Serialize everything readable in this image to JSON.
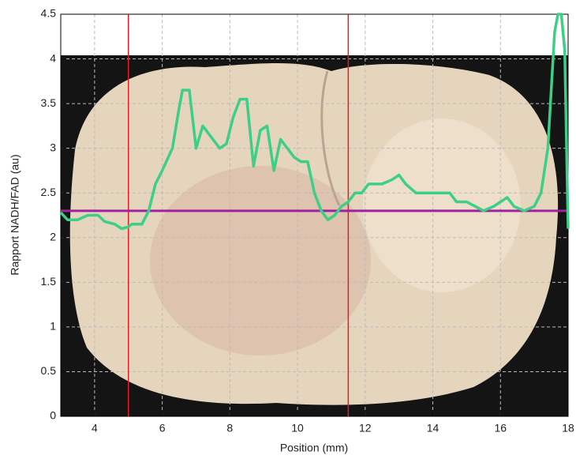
{
  "chart_data": {
    "type": "line",
    "x_label": "Position (mm)",
    "y_label": "Rapport NADH/FAD (au)",
    "x": [
      3.0,
      3.2,
      3.5,
      3.8,
      4.1,
      4.3,
      4.6,
      4.8,
      5.0,
      5.1,
      5.4,
      5.6,
      5.8,
      6.0,
      6.3,
      6.5,
      6.6,
      6.8,
      7.0,
      7.2,
      7.5,
      7.7,
      7.9,
      8.1,
      8.3,
      8.5,
      8.7,
      8.9,
      9.1,
      9.3,
      9.5,
      9.7,
      9.9,
      10.1,
      10.3,
      10.5,
      10.7,
      10.9,
      11.1,
      11.3,
      11.5,
      11.7,
      11.9,
      12.1,
      12.5,
      12.8,
      13.0,
      13.2,
      13.5,
      14.0,
      14.5,
      14.7,
      15.0,
      15.5,
      15.8,
      16.0,
      16.2,
      16.4,
      16.7,
      17.0,
      17.2,
      17.4,
      17.6,
      17.7,
      17.8,
      17.9,
      18.0
    ],
    "series": [
      {
        "color": "#3dcf87",
        "values": [
          2.28,
          2.2,
          2.2,
          2.25,
          2.25,
          2.18,
          2.15,
          2.1,
          2.12,
          2.15,
          2.15,
          2.3,
          2.6,
          2.75,
          3.0,
          3.45,
          3.65,
          3.65,
          3.0,
          3.25,
          3.1,
          3.0,
          3.05,
          3.35,
          3.55,
          3.55,
          2.8,
          3.2,
          3.25,
          2.75,
          3.1,
          3.0,
          2.9,
          2.85,
          2.85,
          2.5,
          2.3,
          2.2,
          2.25,
          2.35,
          2.4,
          2.5,
          2.5,
          2.6,
          2.6,
          2.65,
          2.7,
          2.6,
          2.5,
          2.5,
          2.5,
          2.4,
          2.4,
          2.3,
          2.35,
          2.4,
          2.45,
          2.35,
          2.3,
          2.35,
          2.5,
          3.0,
          4.3,
          4.5,
          4.5,
          4.1,
          2.1
        ]
      }
    ],
    "hline": {
      "value": 2.3,
      "color": "#a020a0"
    },
    "vlines": {
      "values": [
        5,
        11.5
      ],
      "color": "#e02020"
    },
    "xlim": [
      3,
      18
    ],
    "ylim": [
      0,
      4.5
    ],
    "xticks": [
      4,
      6,
      8,
      10,
      12,
      14,
      16,
      18
    ],
    "yticks": [
      0,
      0.5,
      1,
      1.5,
      2,
      2.5,
      3,
      3.5,
      4,
      4.5
    ],
    "grid": true
  }
}
